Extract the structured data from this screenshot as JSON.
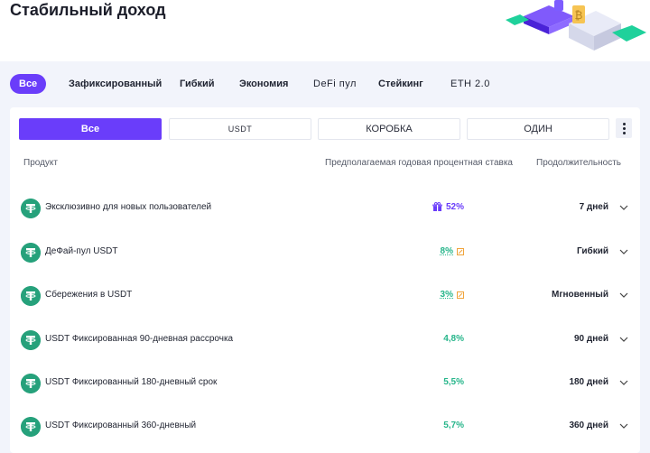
{
  "page": {
    "title": "Стабильный доход"
  },
  "filters": [
    {
      "label": "Все",
      "active": true
    },
    {
      "label": "Зафиксированный"
    },
    {
      "label": "Гибкий"
    },
    {
      "label": "Экономия"
    },
    {
      "label": "DeFi пул"
    },
    {
      "label": "Стейкинг"
    },
    {
      "label": "ETH 2.0"
    }
  ],
  "segments": [
    {
      "label": "Все",
      "active": true
    },
    {
      "label": "USDT"
    },
    {
      "label": "КОРОБКА"
    },
    {
      "label": "ОДИН"
    }
  ],
  "table": {
    "headers": {
      "product": "Продукт",
      "rate": "Предполагаемая годовая процентная ставка",
      "duration": "Продолжительность"
    },
    "rows": [
      {
        "name": "Эксклюзивно для новых пользователей",
        "rate": "52%",
        "duration": "7 дней",
        "icon": "gift-icon"
      },
      {
        "name": "ДеФай-пул USDT",
        "rate": "8%",
        "duration": "Гибкий",
        "icon": "tag-icon"
      },
      {
        "name": "Сбережения в USDT",
        "rate": "3%",
        "duration": "Мгновенный",
        "icon": "tag-icon"
      },
      {
        "name": "USDT Фиксированная 90-дневная рассрочка",
        "rate": "4,8%",
        "duration": "90 дней"
      },
      {
        "name": "USDT Фиксированный 180-дневный срок",
        "rate": "5,5%",
        "duration": "180 дней"
      },
      {
        "name": "USDT Фиксированный 360-дневный",
        "rate": "5,7%",
        "duration": "360 дней"
      }
    ]
  },
  "colors": {
    "accent": "#6a3dfa",
    "green": "#26a17b",
    "rate_green": "#26b58a"
  }
}
